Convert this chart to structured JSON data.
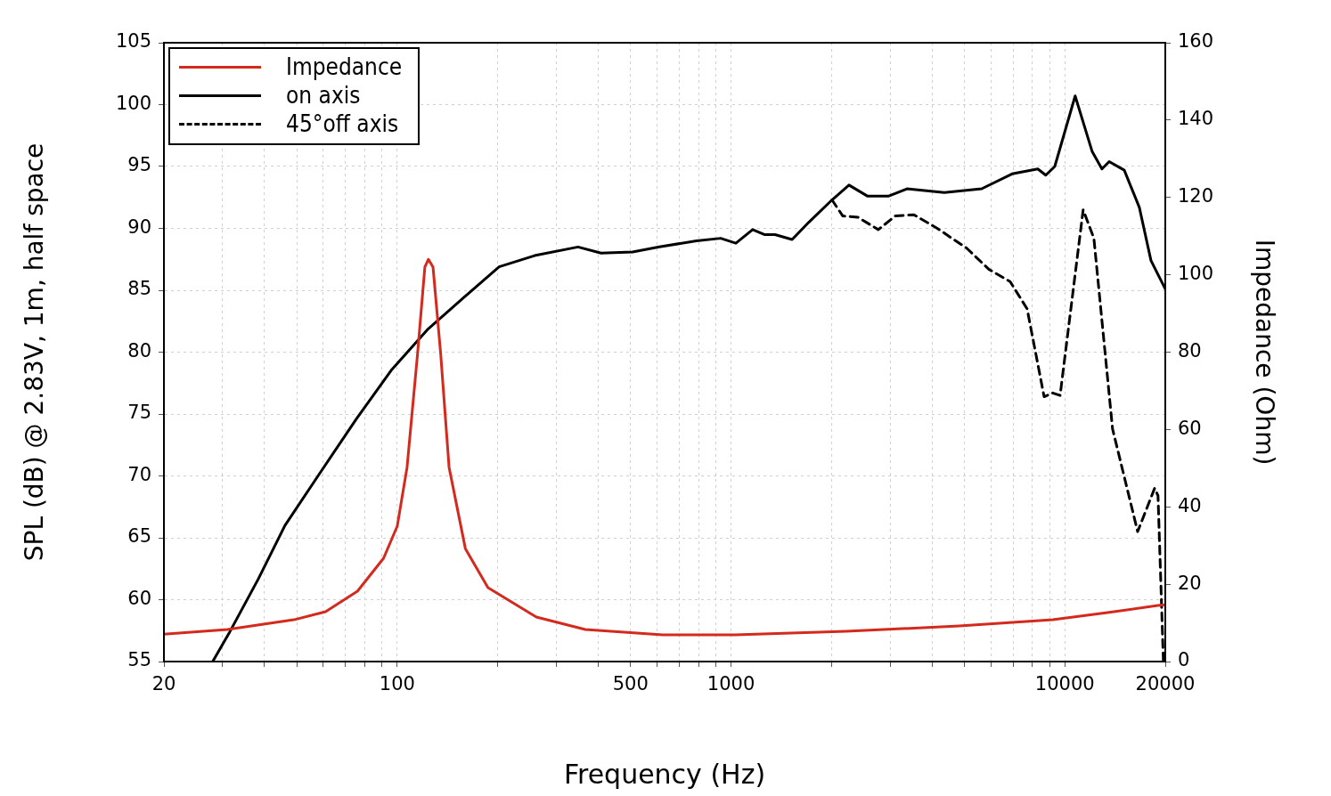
{
  "chart_data": {
    "type": "line",
    "xlabel": "Frequency (Hz)",
    "ylabel": "SPL (dB) @ 2.83V, 1m, half space",
    "y2label": "Impedance (Ohm)",
    "log": "x",
    "grid": true,
    "legend": "top left",
    "marker": "none",
    "xlim": [
      20,
      20000
    ],
    "xticks": [
      {
        "value": 20,
        "label": "20"
      },
      {
        "value": 30,
        "label": null
      },
      {
        "value": 40,
        "label": null
      },
      {
        "value": 50,
        "label": null
      },
      {
        "value": 60,
        "label": null
      },
      {
        "value": 70,
        "label": null
      },
      {
        "value": 80,
        "label": null
      },
      {
        "value": 90,
        "label": null
      },
      {
        "value": 100,
        "label": "100"
      },
      {
        "value": 200,
        "label": null
      },
      {
        "value": 300,
        "label": null
      },
      {
        "value": 400,
        "label": null
      },
      {
        "value": 500,
        "label": "500"
      },
      {
        "value": 600,
        "label": null
      },
      {
        "value": 700,
        "label": null
      },
      {
        "value": 800,
        "label": null
      },
      {
        "value": 900,
        "label": null
      },
      {
        "value": 1000,
        "label": "1000"
      },
      {
        "value": 2000,
        "label": null
      },
      {
        "value": 3000,
        "label": null
      },
      {
        "value": 4000,
        "label": null
      },
      {
        "value": 5000,
        "label": null
      },
      {
        "value": 6000,
        "label": null
      },
      {
        "value": 7000,
        "label": null
      },
      {
        "value": 8000,
        "label": null
      },
      {
        "value": 9000,
        "label": null
      },
      {
        "value": 10000,
        "label": "10000"
      },
      {
        "value": 20000,
        "label": "20000"
      }
    ],
    "ylim": [
      55,
      105
    ],
    "yticks": [
      55,
      60,
      65,
      70,
      75,
      80,
      85,
      90,
      95,
      100,
      105
    ],
    "y2lim": [
      0,
      160
    ],
    "y2ticks": [
      0,
      20,
      40,
      60,
      80,
      100,
      120,
      140,
      160
    ],
    "series": [
      {
        "name": "Impedance",
        "color": "#d42a1e",
        "axis": "y2",
        "line_style": "solid",
        "x": [
          20,
          31,
          49,
          61,
          76,
          91,
          100,
          107,
          115,
          121,
          124,
          128,
          135,
          143,
          160,
          187,
          261,
          366,
          624,
          1030,
          2213,
          4832,
          9200,
          13580,
          19000,
          20000
        ],
        "values": [
          7.1,
          8.3,
          10.8,
          12.9,
          18.2,
          26.7,
          35,
          50.2,
          79.4,
          102,
          104,
          102,
          79.4,
          50.2,
          29.2,
          19.1,
          11.5,
          8.3,
          6.9,
          6.9,
          7.8,
          9.2,
          10.8,
          12.7,
          14.5,
          14.7
        ]
      },
      {
        "name": "on axis",
        "color": "#000000",
        "line_style": "solid",
        "x": [
          28,
          31.5,
          38.4,
          46.1,
          57.9,
          75.4,
          96.4,
          123,
          158,
          202,
          258,
          348,
          408,
          507,
          610,
          788,
          931,
          1034,
          1161,
          1258,
          1355,
          1524,
          1711,
          2007,
          2256,
          2567,
          2958,
          3365,
          4355,
          5636,
          6948,
          8300,
          8770,
          9330,
          10740,
          12080,
          12920,
          13580,
          15070,
          16720,
          18120,
          20000
        ],
        "values": [
          55,
          57.4,
          61.7,
          66,
          70,
          74.6,
          78.6,
          81.8,
          84.4,
          86.9,
          87.8,
          88.5,
          88,
          88.1,
          88.5,
          89,
          89.2,
          88.8,
          89.9,
          89.5,
          89.5,
          89.1,
          90.5,
          92.3,
          93.5,
          92.6,
          92.6,
          93.2,
          92.9,
          93.2,
          94.4,
          94.8,
          94.3,
          95,
          100.7,
          96.2,
          94.8,
          95.4,
          94.7,
          91.7,
          87.4,
          85.1
        ]
      },
      {
        "name": "45°off axis",
        "color": "#000000",
        "line_style": "dashed",
        "x": [
          2007,
          2162,
          2400,
          2762,
          3105,
          3532,
          4148,
          5082,
          5918,
          6857,
          7710,
          8670,
          9200,
          9680,
          11350,
          12220,
          13900,
          16530,
          18580,
          19020,
          19740
        ],
        "values": [
          92.3,
          91,
          90.9,
          89.9,
          91,
          91.1,
          90,
          88.4,
          86.7,
          85.7,
          83.5,
          76.4,
          76.7,
          76.5,
          91.5,
          89.2,
          73.8,
          65.5,
          69,
          68.4,
          55
        ]
      }
    ]
  }
}
